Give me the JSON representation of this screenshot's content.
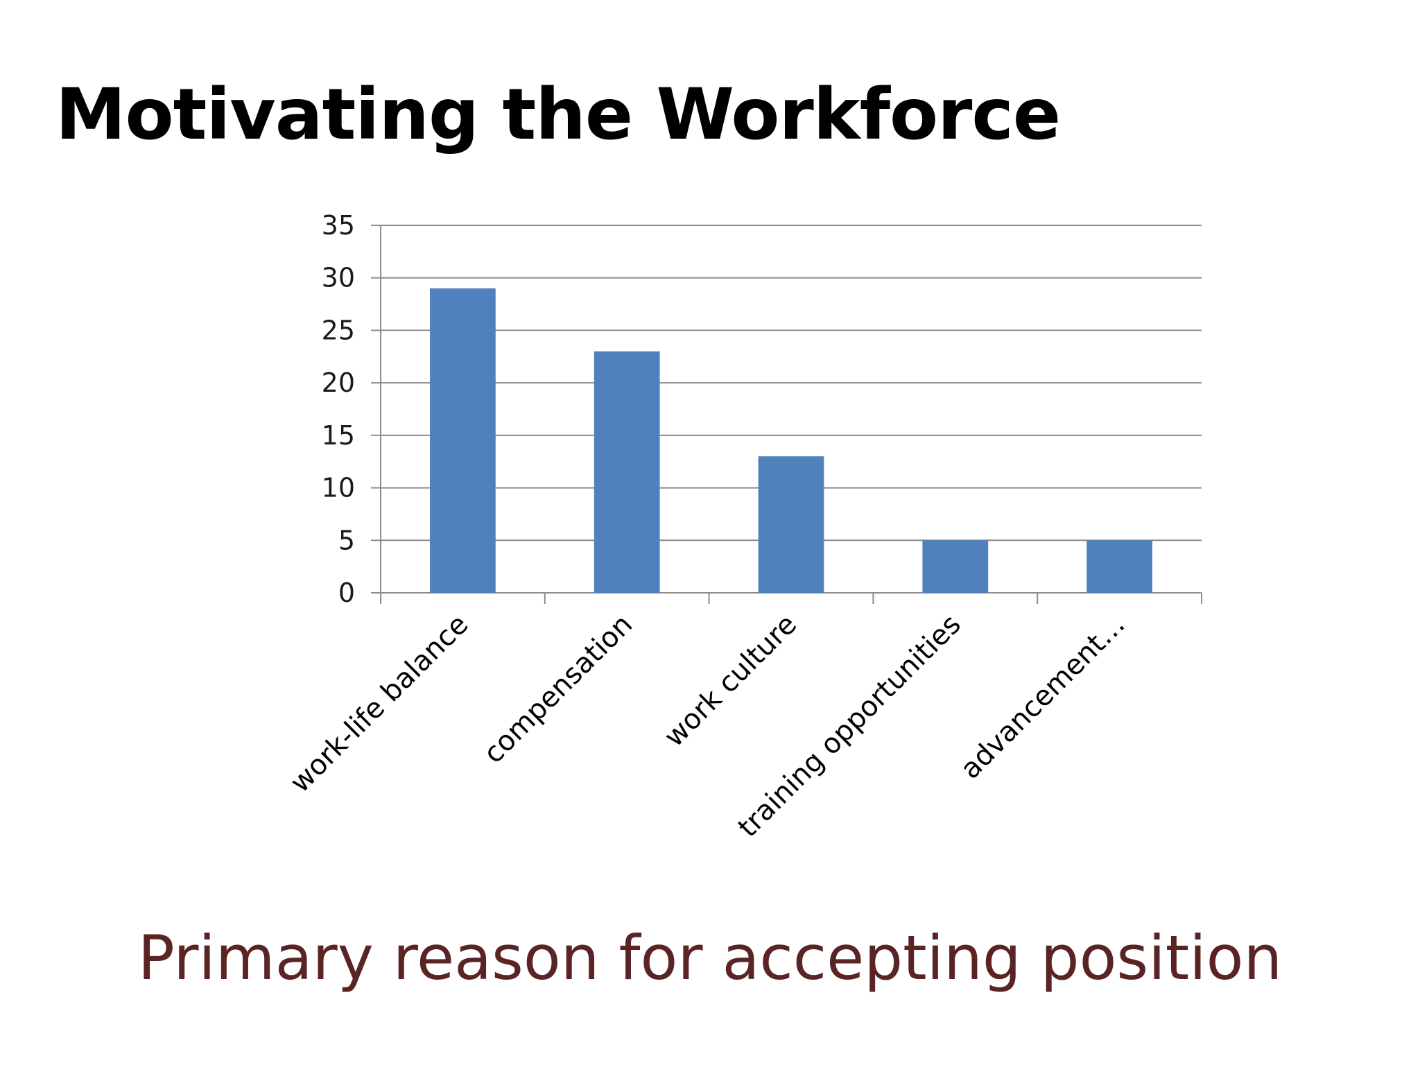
{
  "slide": {
    "title": "Motivating the Workforce",
    "caption": "Primary reason for accepting position"
  },
  "colors": {
    "bar": "#4f81bd",
    "grid": "#8c8c8c",
    "axis": "#8c8c8c",
    "caption": "#5a2424"
  },
  "chart_data": {
    "type": "bar",
    "title": "",
    "xlabel": "",
    "ylabel": "",
    "categories": [
      "work-life balance",
      "compensation",
      "work culture",
      "training opportunities",
      "advancement…"
    ],
    "values": [
      29,
      23,
      13,
      5,
      5
    ],
    "ylim": [
      0,
      35
    ],
    "yticks": [
      0,
      5,
      10,
      15,
      20,
      25,
      30,
      35
    ],
    "grid": true,
    "legend": "none"
  }
}
